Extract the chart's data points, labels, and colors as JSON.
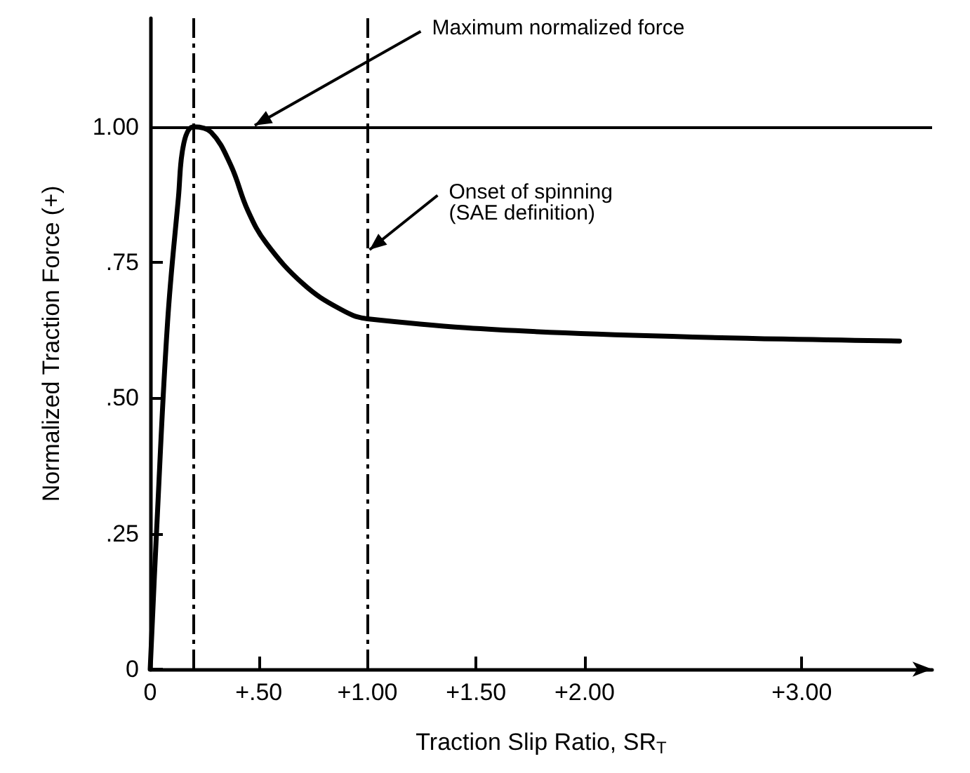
{
  "chart_data": {
    "type": "line",
    "xlabel": "Traction Slip Ratio, SR$_{T}$",
    "ylabel": "Normalized Traction Force (+)",
    "x": [
      0,
      0.03,
      0.08,
      0.13,
      0.155,
      0.2,
      0.28,
      0.37,
      0.45,
      0.535,
      0.705,
      0.87,
      1.0,
      1.91,
      3.45
    ],
    "series": [
      {
        "color": "#000000",
        "values": [
          0,
          0.26,
          0.64,
          0.87,
          0.97,
          1.0,
          0.99,
          0.93,
          0.845,
          0.785,
          0.71,
          0.665,
          0.646,
          0.62,
          0.605
        ]
      }
    ],
    "xlim": [
      0,
      3.6
    ],
    "xticks": [
      0,
      {
        "value": 0.5,
        "label": "+.50"
      },
      {
        "value": 1,
        "label": "+1.00"
      },
      {
        "value": 1.5,
        "label": "+1.50"
      },
      {
        "value": 2,
        "label": "+2.00"
      },
      {
        "value": 3,
        "label": "+3.00"
      }
    ],
    "ylim": [
      0,
      1.2
    ],
    "yticks": [
      0,
      {
        "value": 0.25,
        "label": ".25"
      },
      {
        "value": 0.5,
        "label": ".50"
      },
      {
        "value": 0.75,
        "label": ".75"
      },
      {
        "value": 1,
        "label": "1.00"
      }
    ],
    "ref_lines": [
      {
        "axis": "x",
        "value": 0.2,
        "line_style": "dashed"
      },
      {
        "axis": "x",
        "value": 1.0,
        "line_style": "dashed"
      },
      {
        "axis": "y",
        "value": 1.0,
        "line_style": "solid"
      }
    ],
    "annotations": [
      {
        "text": "Maximum normalized force",
        "x": 0.47,
        "y": 1.0
      },
      {
        "text": "Onset of spinning\n(SAE definition)",
        "x": 1.0,
        "y": 0.77
      }
    ],
    "grid": false,
    "marker": "none",
    "line_style": "solid"
  }
}
